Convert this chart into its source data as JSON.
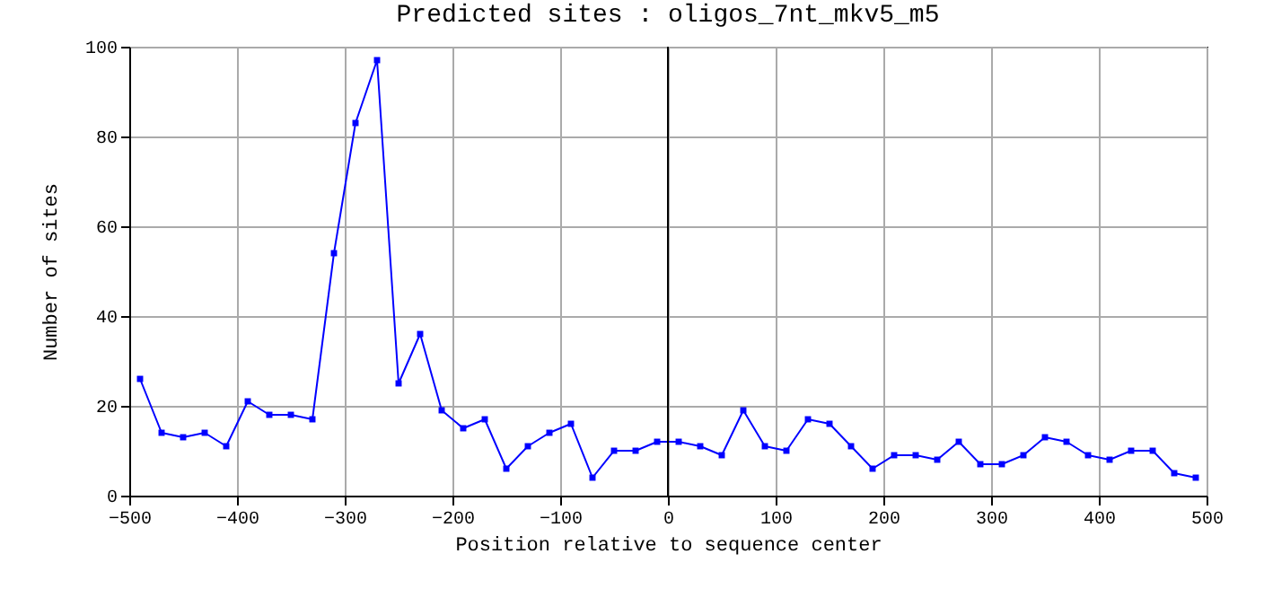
{
  "chart_data": {
    "type": "line",
    "title": "Predicted sites : oligos_7nt_mkv5_m5",
    "xlabel": "Position relative to sequence center",
    "ylabel": "Number of sites",
    "x": [
      -490,
      -470,
      -450,
      -430,
      -410,
      -390,
      -370,
      -350,
      -330,
      -310,
      -290,
      -270,
      -250,
      -230,
      -210,
      -190,
      -170,
      -150,
      -130,
      -110,
      -90,
      -70,
      -50,
      -30,
      -10,
      10,
      30,
      50,
      70,
      90,
      110,
      130,
      150,
      170,
      190,
      210,
      230,
      250,
      270,
      290,
      310,
      330,
      350,
      370,
      390,
      410,
      430,
      450,
      470,
      490
    ],
    "series": [
      {
        "color": "#0000ff",
        "values": [
          26,
          14,
          13,
          14,
          11,
          21,
          18,
          18,
          17,
          54,
          83,
          97,
          25,
          36,
          19,
          15,
          17,
          6,
          11,
          14,
          16,
          4,
          10,
          10,
          12,
          12,
          11,
          9,
          19,
          11,
          10,
          17,
          16,
          11,
          6,
          9,
          9,
          8,
          12,
          7,
          7,
          9,
          13,
          12,
          9,
          8,
          10,
          10,
          5,
          4
        ]
      }
    ],
    "xlim": [
      -500,
      500
    ],
    "xticks": [
      -500,
      -400,
      -300,
      -200,
      -100,
      0,
      100,
      200,
      300,
      400,
      500
    ],
    "ylim": [
      0,
      100
    ],
    "yticks": [
      0,
      20,
      40,
      60,
      80,
      100
    ],
    "grid": true,
    "marker": "square",
    "line_style": "solid",
    "ref_lines": [
      {
        "axis": "x",
        "value": 0,
        "color": "#000000"
      }
    ]
  }
}
